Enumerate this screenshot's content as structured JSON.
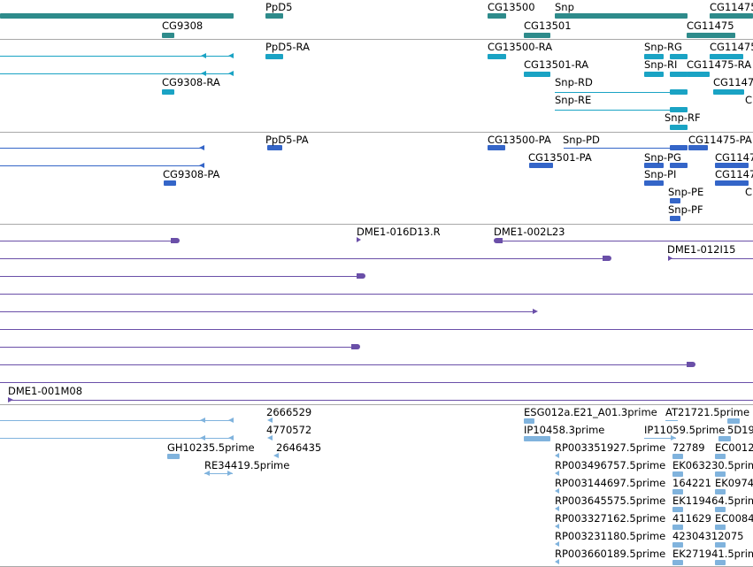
{
  "colors": {
    "gene": "#2e8b8b",
    "transcript": "#1aa3c4",
    "protein": "#3465c8",
    "clone": "#6a4fa8",
    "est": "#80b3dd",
    "separator": "#a8a8a8"
  },
  "tracks": {
    "genes": {
      "labels": [
        "CG9308",
        "PpD5",
        "CG13500",
        "Snp",
        "CG11475",
        "CG13501",
        "CG11475"
      ]
    },
    "transcripts": {
      "labels": [
        "PpD5-RA",
        "CG13500-RA",
        "Snp-RG",
        "CG11475",
        "CG9308-RA",
        "CG13501-RA",
        "Snp-RI",
        "CG11475-RA",
        "Snp-RD",
        "CG1147",
        "Snp-RE",
        "C",
        "Snp-RF"
      ]
    },
    "proteins": {
      "labels": [
        "PpD5-PA",
        "CG13500-PA",
        "Snp-PD",
        "CG11475-PA",
        "CG13501-PA",
        "Snp-PG",
        "CG1147",
        "CG9308-PA",
        "Snp-PI",
        "CG1147",
        "Snp-PE",
        "C",
        "Snp-PF"
      ]
    },
    "clones": {
      "labels": [
        "DME1-016D13.R",
        "DME1-002L23",
        "DME1-012I15",
        "DME1-001M08"
      ]
    },
    "ests": {
      "labels": [
        "2666529",
        "ESG012a.E21_A01.3prime",
        "AT21721.5prime",
        "4770572",
        "IP10458.3prime",
        "IP11059.5prime",
        "5D19",
        "GH10235.5prime",
        "2646435",
        "RP003351927.5prime",
        "72789",
        "EC0012",
        "RE34419.5prime",
        "RP003496757.5prime",
        "EK063230.5prime",
        "RP003144697.5prime",
        "164221",
        "EK0974",
        "RP003645575.5prime",
        "EK119464.5prime",
        "RP003327162.5prime",
        "411629",
        "EC0084",
        "RP003231180.5prime",
        "42304312075",
        "RP003660189.5prime",
        "EK271941.5prime"
      ]
    }
  }
}
